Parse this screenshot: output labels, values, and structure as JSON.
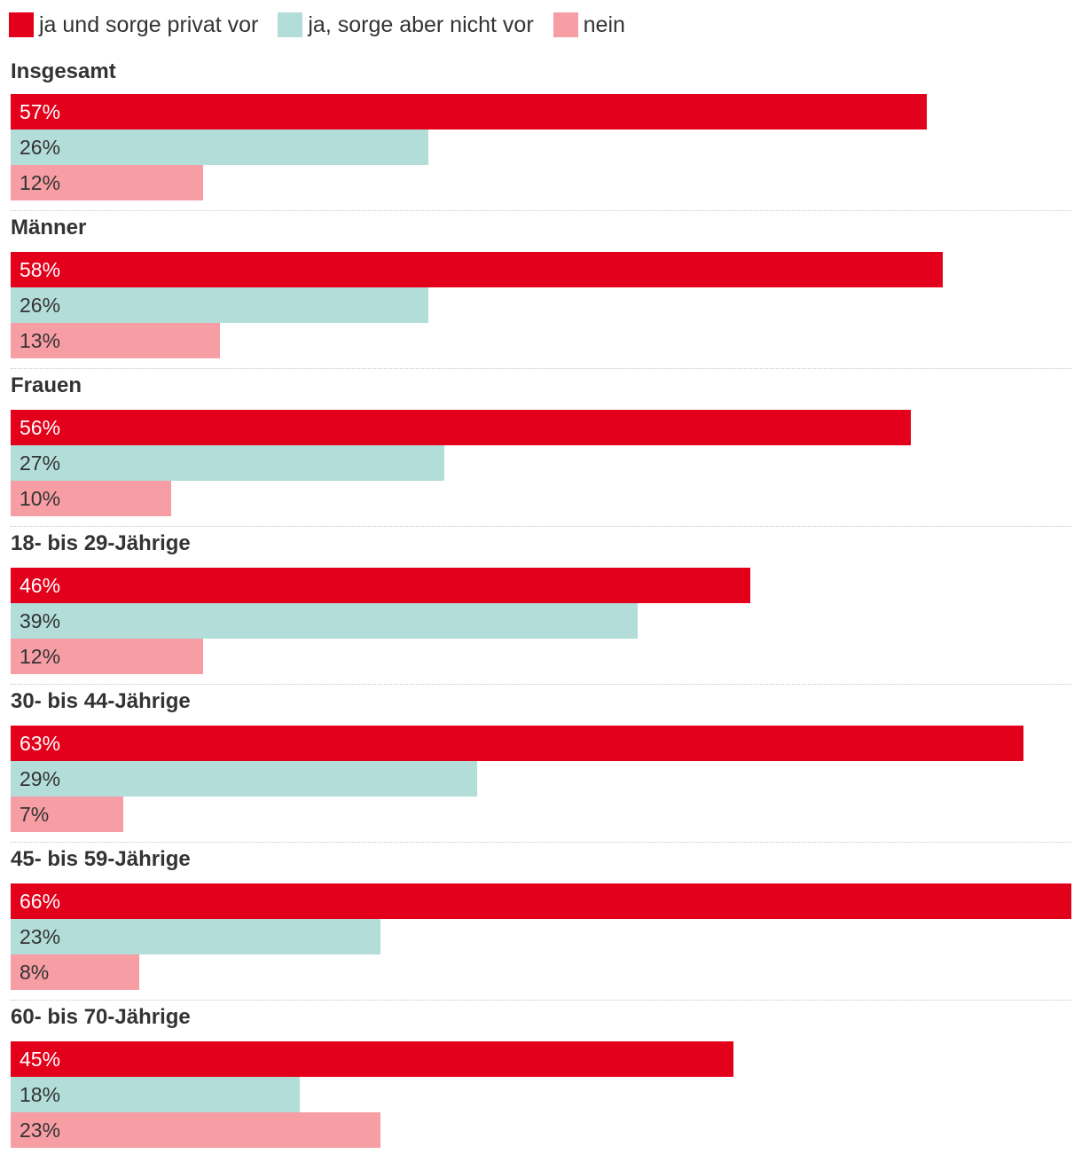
{
  "chart_data": {
    "type": "bar",
    "orientation": "horizontal",
    "legend_position": "top-left",
    "grid": false,
    "xlim": [
      0,
      66
    ],
    "series": [
      {
        "name": "ja und sorge privat vor",
        "color": "#e2001a",
        "text_color": "#ffffff",
        "values": [
          57,
          58,
          56,
          46,
          63,
          66,
          45
        ]
      },
      {
        "name": "ja, sorge aber nicht vor",
        "color": "#b2ddd9",
        "text_color": "#333333",
        "values": [
          26,
          26,
          27,
          39,
          29,
          23,
          18
        ]
      },
      {
        "name": "nein",
        "color": "#f79da4",
        "text_color": "#333333",
        "values": [
          12,
          13,
          10,
          12,
          7,
          8,
          23
        ]
      }
    ],
    "categories": [
      "Insgesamt",
      "Männer",
      "Frauen",
      "18- bis 29-Jährige",
      "30- bis 44-Jährige",
      "45- bis 59-Jährige",
      "60- bis 70-Jährige"
    ],
    "value_suffix": "%"
  }
}
